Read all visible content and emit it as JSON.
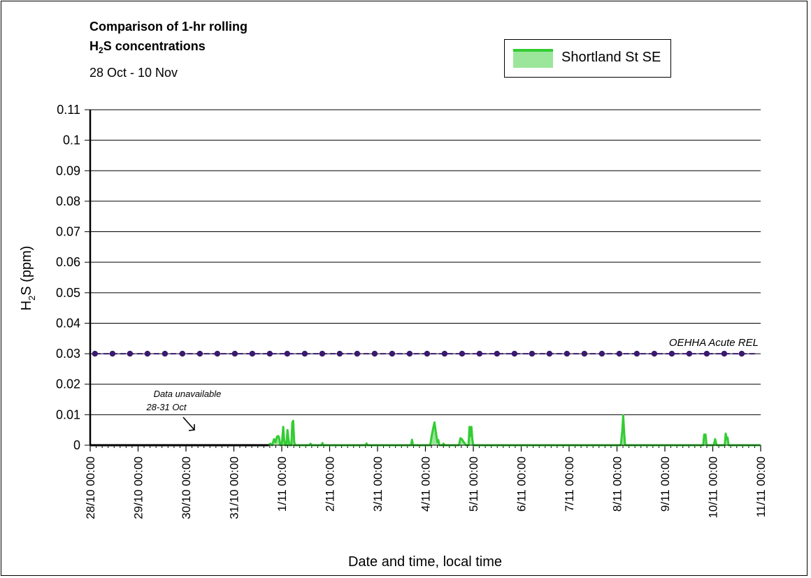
{
  "chart_data": {
    "type": "line",
    "title_line1": "Comparison of 1-hr rolling",
    "title_line2_prefix": "H",
    "title_line2_sub": "2",
    "title_line2_suffix": "S concentrations",
    "subtitle": "28 Oct - 10 Nov",
    "ylabel_prefix": "H",
    "ylabel_sub": "2",
    "ylabel_suffix": "S (ppm)",
    "xlabel": "Date and time, local time",
    "ylim": [
      0,
      0.11
    ],
    "y_ticks": [
      "0",
      "0.01",
      "0.02",
      "0.03",
      "0.04",
      "0.05",
      "0.06",
      "0.07",
      "0.08",
      "0.09",
      "0.1",
      "0.11"
    ],
    "x_ticks": [
      "28/10 00:00",
      "29/10 00:00",
      "30/10 00:00",
      "31/10 00:00",
      "1/11 00:00",
      "2/11 00:00",
      "3/11 00:00",
      "4/11 00:00",
      "5/11 00:00",
      "6/11 00:00",
      "7/11 00:00",
      "8/11 00:00",
      "9/11 00:00",
      "10/11 00:00",
      "11/11 00:00"
    ],
    "x_range_days": [
      0,
      14
    ],
    "grid": true,
    "legend_position": "top-right",
    "series": [
      {
        "name": "Shortland St SE",
        "color": "#33cc33",
        "fill_color": "#9be69b",
        "points": [
          [
            3.73,
            0
          ],
          [
            3.76,
            0.0005
          ],
          [
            3.8,
            0
          ],
          [
            3.84,
            0.002
          ],
          [
            3.87,
            0.001
          ],
          [
            3.9,
            0.0028
          ],
          [
            3.93,
            0.003
          ],
          [
            3.95,
            0.002
          ],
          [
            3.97,
            0
          ],
          [
            4.0,
            0
          ],
          [
            4.03,
            0.006
          ],
          [
            4.05,
            0.002
          ],
          [
            4.07,
            0
          ],
          [
            4.1,
            0
          ],
          [
            4.12,
            0.005
          ],
          [
            4.14,
            0.002
          ],
          [
            4.16,
            0
          ],
          [
            4.2,
            0
          ],
          [
            4.22,
            0.0075
          ],
          [
            4.24,
            0.008
          ],
          [
            4.26,
            0.001
          ],
          [
            4.28,
            0
          ],
          [
            4.58,
            0
          ],
          [
            4.6,
            0.0005
          ],
          [
            4.62,
            0
          ],
          [
            4.83,
            0
          ],
          [
            4.85,
            0.0007
          ],
          [
            4.87,
            0
          ],
          [
            5.75,
            0
          ],
          [
            5.77,
            0.0006
          ],
          [
            5.79,
            0
          ],
          [
            6.7,
            0
          ],
          [
            6.72,
            0.0018
          ],
          [
            6.74,
            0
          ],
          [
            7.1,
            0
          ],
          [
            7.13,
            0.003
          ],
          [
            7.16,
            0.0055
          ],
          [
            7.19,
            0.0075
          ],
          [
            7.22,
            0.004
          ],
          [
            7.25,
            0.001
          ],
          [
            7.27,
            0.0017
          ],
          [
            7.29,
            0
          ],
          [
            7.35,
            0
          ],
          [
            7.38,
            0.0005
          ],
          [
            7.4,
            0
          ],
          [
            7.7,
            0
          ],
          [
            7.73,
            0.0023
          ],
          [
            7.76,
            0.002
          ],
          [
            7.8,
            0.001
          ],
          [
            7.85,
            0
          ],
          [
            7.9,
            0
          ],
          [
            7.92,
            0.006
          ],
          [
            7.94,
            0.003
          ],
          [
            7.96,
            0.006
          ],
          [
            7.98,
            0.002
          ],
          [
            8.0,
            0
          ],
          [
            11.08,
            0
          ],
          [
            11.11,
            0.0045
          ],
          [
            11.13,
            0.0098
          ],
          [
            11.15,
            0.004
          ],
          [
            11.17,
            0
          ],
          [
            12.8,
            0
          ],
          [
            12.82,
            0.0035
          ],
          [
            12.85,
            0.0035
          ],
          [
            12.87,
            0
          ],
          [
            13.02,
            0
          ],
          [
            13.05,
            0.002
          ],
          [
            13.08,
            0
          ],
          [
            13.25,
            0
          ],
          [
            13.27,
            0.0038
          ],
          [
            13.29,
            0.002
          ],
          [
            13.31,
            0.0025
          ],
          [
            13.33,
            0
          ],
          [
            14.0,
            0
          ]
        ]
      },
      {
        "name": "OEHHA Acute REL",
        "color": "#3a1a6e",
        "constant_value": 0.03,
        "x_start": 0.1,
        "x_end": 13.9,
        "marker_spacing_days": 0.365
      }
    ],
    "annotations": [
      {
        "text_line1": "Data unavailable",
        "text_line2": "28-31 Oct"
      },
      {
        "text": "OEHHA Acute REL"
      }
    ]
  },
  "legend": {
    "label": "Shortland St SE"
  }
}
